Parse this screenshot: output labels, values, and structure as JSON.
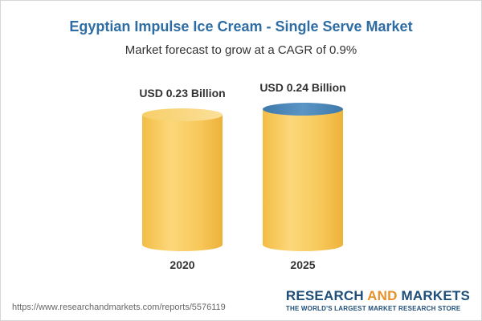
{
  "chart_data": {
    "type": "bar",
    "title": "Egyptian Impulse Ice Cream - Single Serve Market",
    "subtitle": "Market forecast to grow at a CAGR of 0.9%",
    "categories": [
      "2020",
      "2025"
    ],
    "values": [
      0.23,
      0.24
    ],
    "data_labels": [
      "USD 0.23 Billion",
      "USD 0.24 Billion"
    ],
    "unit": "USD Billion",
    "ylim": [
      0,
      0.24
    ],
    "grid": false,
    "legend": "none",
    "colors": {
      "bar_body": "#f6c85a",
      "bar_top_default": "#f9d97c",
      "bar_top_highlight": "#4a86b8"
    }
  },
  "source_url": "https://www.researchandmarkets.com/reports/5576119",
  "brand": {
    "name_part1": "RESEARCH ",
    "name_part2": "AND",
    "name_part3": " MARKETS",
    "tagline": "THE WORLD'S LARGEST MARKET RESEARCH STORE",
    "color": "#1f4e79",
    "accent": "#e8902a"
  }
}
